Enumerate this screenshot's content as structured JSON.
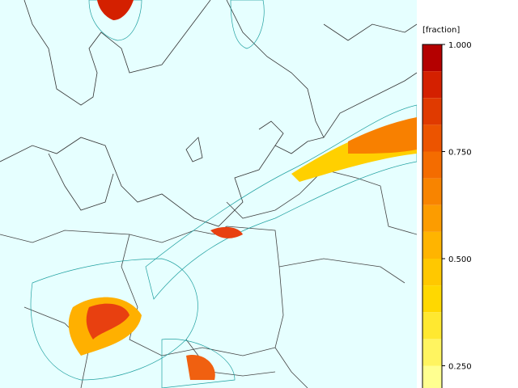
{
  "colorbar": {
    "label": "[fraction]",
    "range": [
      0.1875,
      1
    ],
    "ticks": [
      {
        "value": 1,
        "label": "1.000"
      },
      {
        "value": 0.75,
        "label": "0.750"
      },
      {
        "value": 0.5,
        "label": "0.500"
      },
      {
        "value": 0.25,
        "label": "0.250"
      }
    ],
    "bands": [
      {
        "from": 0.9375,
        "to": 1,
        "color": "#b40000"
      },
      {
        "from": 0.875,
        "to": 0.9375,
        "color": "#d42000"
      },
      {
        "from": 0.8125,
        "to": 0.875,
        "color": "#e03a00"
      },
      {
        "from": 0.75,
        "to": 0.8125,
        "color": "#ec5400"
      },
      {
        "from": 0.6875,
        "to": 0.75,
        "color": "#f46c00"
      },
      {
        "from": 0.625,
        "to": 0.6875,
        "color": "#f88400"
      },
      {
        "from": 0.5625,
        "to": 0.625,
        "color": "#fc9c00"
      },
      {
        "from": 0.5,
        "to": 0.5625,
        "color": "#ffb400"
      },
      {
        "from": 0.4375,
        "to": 0.5,
        "color": "#ffc800"
      },
      {
        "from": 0.375,
        "to": 0.4375,
        "color": "#ffd800"
      },
      {
        "from": 0.3125,
        "to": 0.375,
        "color": "#ffe830"
      },
      {
        "from": 0.25,
        "to": 0.3125,
        "color": "#fff460"
      },
      {
        "from": 0.1875,
        "to": 0.25,
        "color": "#ffff90"
      }
    ]
  }
}
